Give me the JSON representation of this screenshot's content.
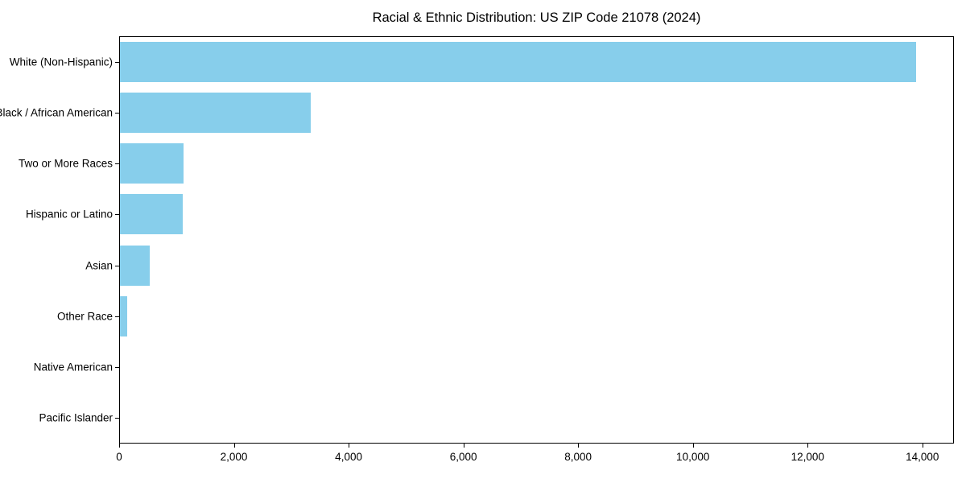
{
  "figure": {
    "title": "Racial & Ethnic Distribution: US ZIP Code 21078 (2024)"
  },
  "chart_data": {
    "type": "bar",
    "orientation": "horizontal",
    "title": "Racial & Ethnic Distribution: US ZIP Code 21078 (2024)",
    "categories": [
      "White (Non-Hispanic)",
      "Black / African American",
      "Two or More Races",
      "Hispanic or Latino",
      "Asian",
      "Other Race",
      "Native American",
      "Pacific Islander"
    ],
    "values": [
      13870,
      3320,
      1110,
      1090,
      520,
      130,
      0,
      0
    ],
    "xlabel": "",
    "ylabel": "",
    "xlim": [
      0,
      14550
    ],
    "xticks": [
      0,
      2000,
      4000,
      6000,
      8000,
      10000,
      12000,
      14000
    ],
    "xtick_labels": [
      "0",
      "2,000",
      "4,000",
      "6,000",
      "8,000",
      "10,000",
      "12,000",
      "14,000"
    ],
    "bar_color": "#87CEEB",
    "text_color": "#000000",
    "grid": false,
    "legend": "none"
  }
}
